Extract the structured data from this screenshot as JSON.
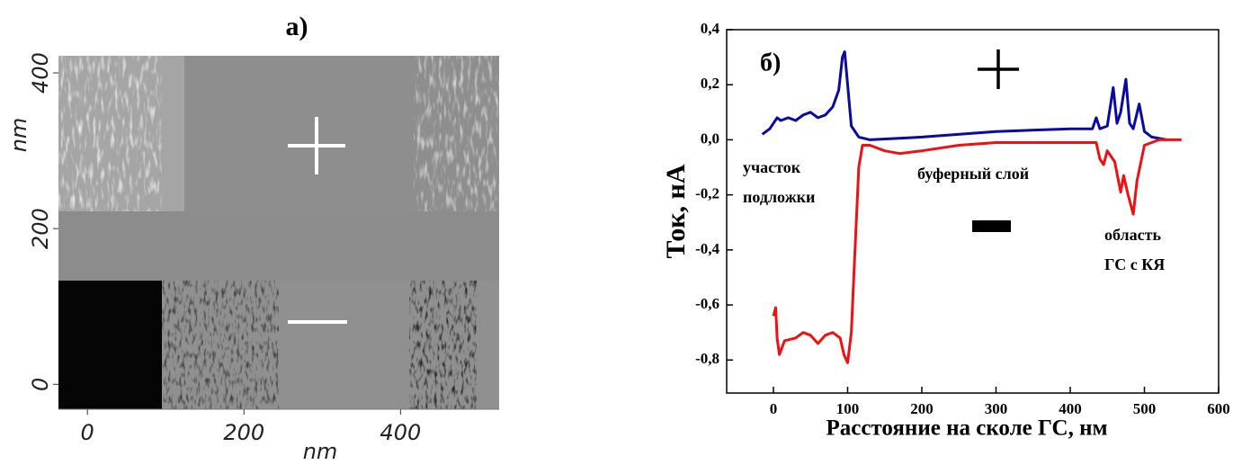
{
  "chart_data": [
    {
      "type": "image",
      "title": "а)",
      "xlabel": "nm",
      "ylabel": "nm",
      "xlim": [
        -37,
        526
      ],
      "ylim": [
        -32,
        422
      ],
      "xticks": [
        0,
        200,
        400
      ],
      "yticks": [
        0,
        200,
        400
      ]
    },
    {
      "type": "line",
      "title": "б)",
      "xlabel": "Расстояние на сколе ГС, нм",
      "ylabel": "Ток, нА",
      "annotations": [
        [
          "участок",
          "подложки"
        ],
        [
          "буферный слой"
        ],
        [
          "область",
          "ГС с КЯ"
        ]
      ],
      "xlim": [
        -63,
        600
      ],
      "ylim": [
        -0.92,
        0.4
      ],
      "xticks": [
        0,
        100,
        200,
        300,
        400,
        500,
        600
      ],
      "yticks": [
        {
          "value": 0.4,
          "label": "0,4"
        },
        {
          "value": 0.2,
          "label": "0,2"
        },
        {
          "value": 0,
          "label": "0,0"
        },
        {
          "value": -0.2,
          "label": "-0,2"
        },
        {
          "value": -0.4,
          "label": "-0,4"
        },
        {
          "value": -0.6,
          "label": "-0,6"
        },
        {
          "value": -0.8,
          "label": "-0,8"
        }
      ],
      "series": [
        {
          "color": "#0a0aa0",
          "x": [
            -15,
            -5,
            5,
            10,
            20,
            30,
            40,
            50,
            60,
            70,
            80,
            88,
            93,
            96,
            100,
            105,
            115,
            130,
            200,
            300,
            400,
            430,
            435,
            440,
            450,
            458,
            463,
            468,
            475,
            480,
            485,
            493,
            500,
            510,
            530
          ],
          "values": [
            0.02,
            0.04,
            0.08,
            0.07,
            0.08,
            0.07,
            0.09,
            0.1,
            0.08,
            0.09,
            0.12,
            0.18,
            0.3,
            0.32,
            0.2,
            0.05,
            0.01,
            0.0,
            0.01,
            0.03,
            0.04,
            0.04,
            0.08,
            0.04,
            0.05,
            0.19,
            0.06,
            0.1,
            0.22,
            0.06,
            0.04,
            0.13,
            0.03,
            0.01,
            0.0
          ]
        },
        {
          "color": "#ee1111",
          "x": [
            0,
            3,
            5,
            8,
            15,
            30,
            40,
            50,
            60,
            70,
            80,
            90,
            95,
            100,
            105,
            110,
            115,
            120,
            130,
            150,
            170,
            200,
            250,
            300,
            400,
            435,
            440,
            445,
            450,
            460,
            468,
            472,
            478,
            485,
            490,
            500,
            520,
            550
          ],
          "values": [
            -0.64,
            -0.61,
            -0.72,
            -0.78,
            -0.73,
            -0.72,
            -0.7,
            -0.71,
            -0.74,
            -0.71,
            -0.7,
            -0.72,
            -0.78,
            -0.81,
            -0.7,
            -0.4,
            -0.1,
            -0.02,
            -0.02,
            -0.04,
            -0.05,
            -0.04,
            -0.02,
            -0.01,
            -0.01,
            -0.01,
            -0.07,
            -0.09,
            -0.04,
            -0.08,
            -0.19,
            -0.13,
            -0.2,
            -0.27,
            -0.15,
            -0.02,
            0,
            0
          ]
        }
      ]
    }
  ]
}
